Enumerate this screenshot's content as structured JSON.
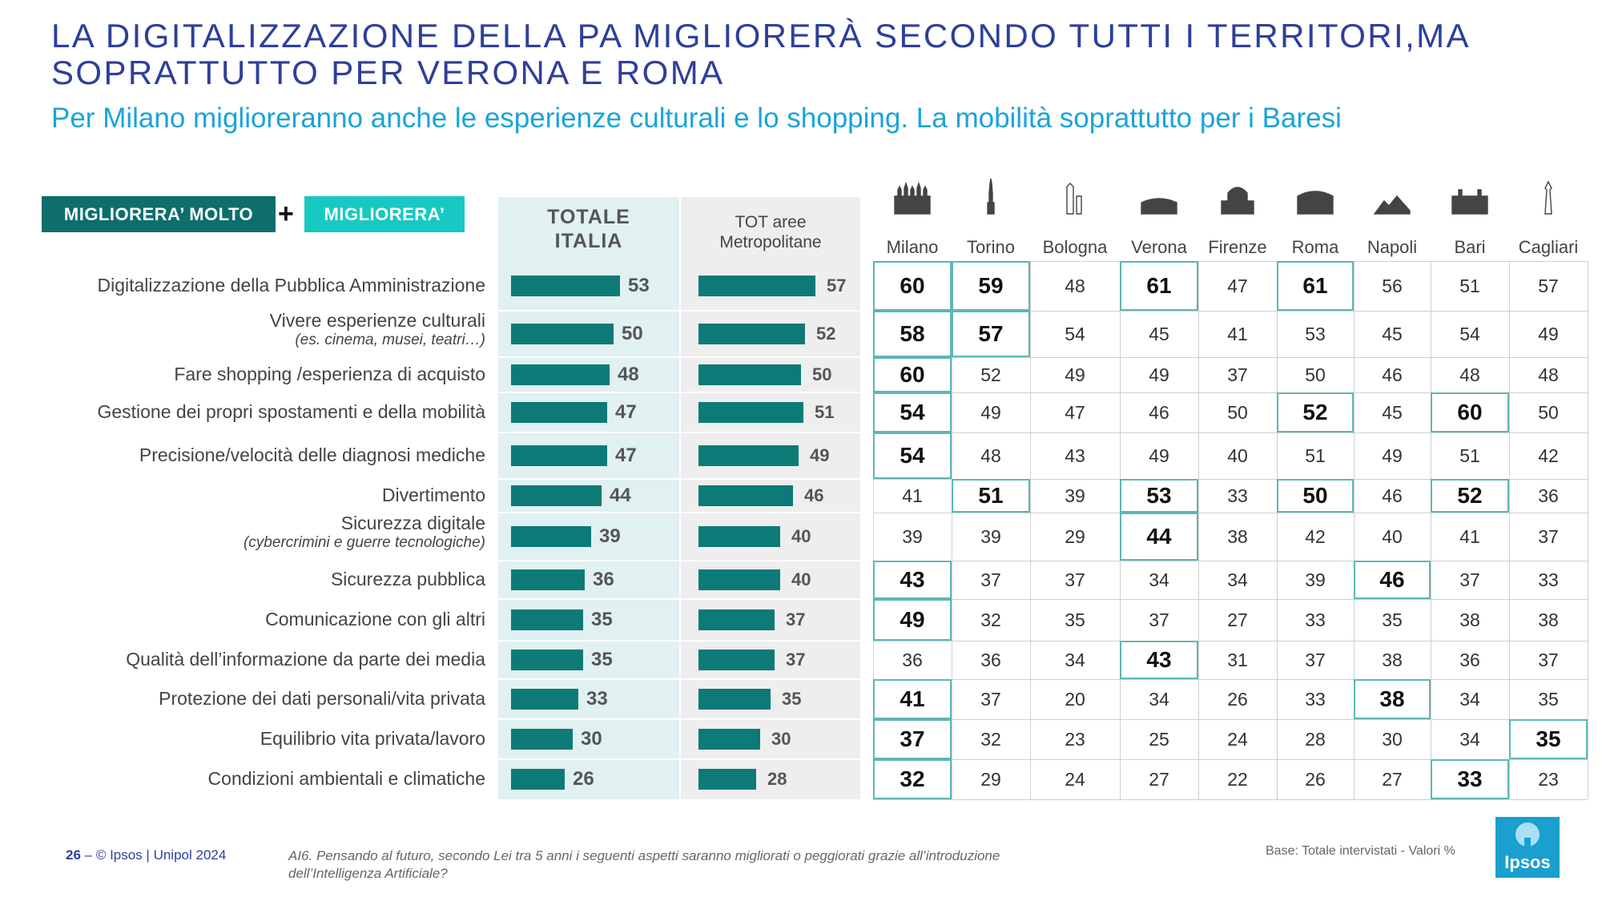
{
  "title_lines": [
    "LA DIGITALIZZAZIONE DELLA PA MIGLIORERÀ SECONDO TUTTI I TERRITORI,MA",
    "SOPRATTUTTO PER VERONA E ROMA"
  ],
  "subtitle": "Per Milano miglioreranno anche le esperienze culturali e lo shopping. La mobilità soprattutto per i Baresi",
  "legend": {
    "a": "MIGLIORERA’ MOLTO",
    "plus": "+",
    "b": "MIGLIORERA’",
    "a_color": "#0d6e6b",
    "b_color": "#17c9c2"
  },
  "headers": {
    "totale_line1": "TOTALE",
    "totale_line2": "ITALIA",
    "metro_line1": "TOT aree",
    "metro_line2": "Metropolitane"
  },
  "cities": [
    "Milano",
    "Torino",
    "Bologna",
    "Verona",
    "Firenze",
    "Roma",
    "Napoli",
    "Bari",
    "Cagliari"
  ],
  "rows": [
    {
      "label": "Digitalizzazione della Pubblica Amministrazione",
      "sub": ""
    },
    {
      "label": "Vivere esperienze culturali",
      "sub": "(es. cinema, musei, teatri…)"
    },
    {
      "label": "Fare shopping /esperienza di acquisto",
      "sub": ""
    },
    {
      "label": "Gestione dei propri spostamenti e della mobilità",
      "sub": ""
    },
    {
      "label": "Precisione/velocità delle diagnosi mediche",
      "sub": ""
    },
    {
      "label": "Divertimento",
      "sub": ""
    },
    {
      "label": "Sicurezza digitale",
      "sub": "(cybercrimini e guerre tecnologiche)"
    },
    {
      "label": "Sicurezza pubblica",
      "sub": ""
    },
    {
      "label": "Comunicazione con gli altri",
      "sub": ""
    },
    {
      "label": "Qualità dell’informazione da parte dei media",
      "sub": ""
    },
    {
      "label": "Protezione dei dati personali/vita privata",
      "sub": ""
    },
    {
      "label": "Equilibrio vita privata/lavoro",
      "sub": ""
    },
    {
      "label": "Condizioni ambientali e climatiche",
      "sub": ""
    }
  ],
  "chart_data": {
    "type": "bar",
    "orientation": "horizontal",
    "categories": [
      "Digitalizzazione della Pubblica Amministrazione",
      "Vivere esperienze culturali",
      "Fare shopping /esperienza di acquisto",
      "Gestione dei propri spostamenti e della mobilità",
      "Precisione/velocità delle diagnosi mediche",
      "Divertimento",
      "Sicurezza digitale",
      "Sicurezza pubblica",
      "Comunicazione con gli altri",
      "Qualità dell’informazione da parte dei media",
      "Protezione dei dati personali/vita privata",
      "Equilibrio vita privata/lavoro",
      "Condizioni ambientali e climatiche"
    ],
    "series": [
      {
        "name": "TOTALE ITALIA",
        "values": [
          53,
          50,
          48,
          47,
          47,
          44,
          39,
          36,
          35,
          35,
          33,
          30,
          26
        ]
      },
      {
        "name": "TOT aree Metropolitane",
        "values": [
          57,
          52,
          50,
          51,
          49,
          46,
          40,
          40,
          37,
          37,
          35,
          30,
          28
        ]
      }
    ],
    "bar_color": "#0d7a77",
    "city_table": {
      "columns": [
        "Milano",
        "Torino",
        "Bologna",
        "Verona",
        "Firenze",
        "Roma",
        "Napoli",
        "Bari",
        "Cagliari"
      ],
      "values": [
        [
          60,
          59,
          48,
          61,
          47,
          61,
          56,
          51,
          57
        ],
        [
          58,
          57,
          54,
          45,
          41,
          53,
          45,
          54,
          49
        ],
        [
          60,
          52,
          49,
          49,
          37,
          50,
          46,
          48,
          48
        ],
        [
          54,
          49,
          47,
          46,
          50,
          52,
          45,
          60,
          50
        ],
        [
          54,
          48,
          43,
          49,
          40,
          51,
          49,
          51,
          42
        ],
        [
          41,
          51,
          39,
          53,
          33,
          50,
          46,
          52,
          36
        ],
        [
          39,
          39,
          29,
          44,
          38,
          42,
          40,
          41,
          37
        ],
        [
          43,
          37,
          37,
          34,
          34,
          39,
          46,
          37,
          33
        ],
        [
          49,
          32,
          35,
          37,
          27,
          33,
          35,
          38,
          38
        ],
        [
          36,
          36,
          34,
          43,
          31,
          37,
          38,
          36,
          37
        ],
        [
          41,
          37,
          20,
          34,
          26,
          33,
          38,
          34,
          35
        ],
        [
          37,
          32,
          23,
          25,
          24,
          28,
          30,
          34,
          35
        ],
        [
          32,
          29,
          24,
          27,
          22,
          26,
          27,
          33,
          23
        ]
      ],
      "highlighted": [
        [
          true,
          true,
          false,
          true,
          false,
          true,
          false,
          false,
          false
        ],
        [
          true,
          true,
          false,
          false,
          false,
          false,
          false,
          false,
          false
        ],
        [
          true,
          false,
          false,
          false,
          false,
          false,
          false,
          false,
          false
        ],
        [
          true,
          false,
          false,
          false,
          false,
          true,
          false,
          true,
          false
        ],
        [
          true,
          false,
          false,
          false,
          false,
          false,
          false,
          false,
          false
        ],
        [
          false,
          true,
          false,
          true,
          false,
          true,
          false,
          true,
          false
        ],
        [
          false,
          false,
          false,
          true,
          false,
          false,
          false,
          false,
          false
        ],
        [
          true,
          false,
          false,
          false,
          false,
          false,
          true,
          false,
          false
        ],
        [
          true,
          false,
          false,
          false,
          false,
          false,
          false,
          false,
          false
        ],
        [
          false,
          false,
          false,
          true,
          false,
          false,
          false,
          false,
          false
        ],
        [
          true,
          false,
          false,
          false,
          false,
          false,
          true,
          false,
          false
        ],
        [
          true,
          false,
          false,
          false,
          false,
          false,
          false,
          false,
          true
        ],
        [
          true,
          false,
          false,
          false,
          false,
          false,
          false,
          true,
          false
        ]
      ]
    }
  },
  "footer": {
    "page": "26",
    "credit": " – © Ipsos | Unipol  2024",
    "note": "AI6. Pensando al futuro, secondo Lei tra 5 anni i seguenti aspetti saranno migliorati o peggiorati grazie all’introduzione dell’Intelligenza Artificiale?",
    "base": "Base: Totale intervistati  - Valori %",
    "logo": "Ipsos"
  }
}
